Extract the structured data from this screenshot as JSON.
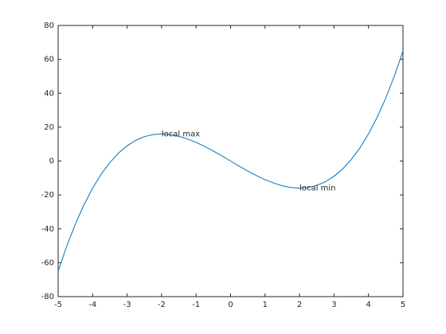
{
  "chart_data": {
    "type": "line",
    "x": [
      -5,
      -4.75,
      -4.5,
      -4.25,
      -4,
      -3.75,
      -3.5,
      -3.25,
      -3,
      -2.75,
      -2.5,
      -2.25,
      -2,
      -1.75,
      -1.5,
      -1.25,
      -1,
      -0.75,
      -0.5,
      -0.25,
      0,
      0.25,
      0.5,
      0.75,
      1,
      1.25,
      1.5,
      1.75,
      2,
      2.25,
      2.5,
      2.75,
      3,
      3.25,
      3.5,
      3.75,
      4,
      4.25,
      4.5,
      4.75,
      5
    ],
    "series": [
      {
        "color": "#0072bd",
        "values": [
          -65,
          -50.2,
          -37.1,
          -25.8,
          -16,
          -7.7,
          -0.9,
          4.7,
          9,
          12.2,
          14.4,
          15.6,
          16,
          15.6,
          14.6,
          13.0,
          11,
          8.6,
          5.9,
          3.0,
          0,
          -3.0,
          -5.9,
          -8.6,
          -11,
          -13.0,
          -14.6,
          -15.6,
          -16,
          -15.6,
          -14.4,
          -12.2,
          -9,
          -4.7,
          0.9,
          7.7,
          16,
          25.8,
          37.1,
          50.2,
          65
        ]
      }
    ],
    "annotations": [
      {
        "text": "local max",
        "x": -2,
        "y": 16
      },
      {
        "text": "local min",
        "x": 2,
        "y": -16
      }
    ],
    "xlim": [
      -5,
      5
    ],
    "xticks": [
      -5,
      -4,
      -3,
      -2,
      -1,
      0,
      1,
      2,
      3,
      4,
      5
    ],
    "ylim": [
      -80,
      80
    ],
    "yticks": [
      -80,
      -60,
      -40,
      -20,
      0,
      20,
      40,
      60,
      80
    ],
    "grid": false
  }
}
